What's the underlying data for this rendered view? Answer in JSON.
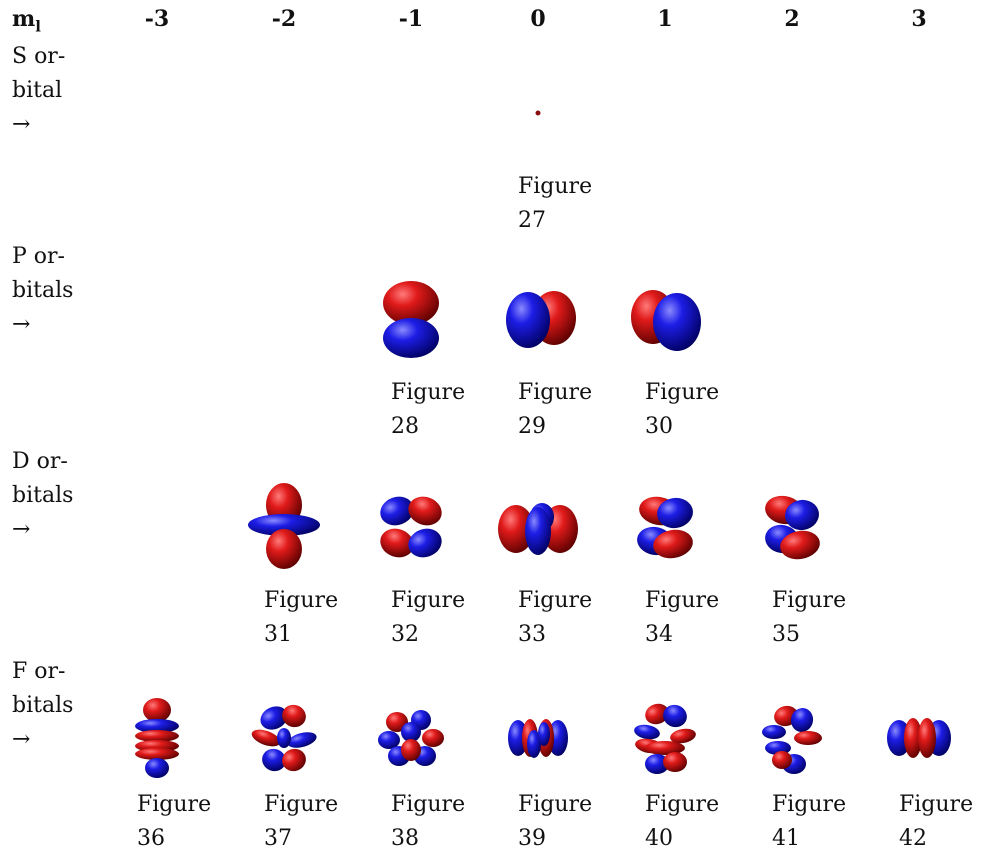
{
  "table": {
    "header": {
      "m_label": "m",
      "m_sub": "l",
      "columns": [
        "-3",
        "-2",
        "-1",
        "0",
        "1",
        "2",
        "3"
      ]
    },
    "rows": [
      {
        "label_lines": [
          "S or-",
          "bital",
          "→"
        ],
        "figures": [
          {
            "m": "0",
            "word": "Figure",
            "num": "27",
            "shape": "s-dot"
          }
        ]
      },
      {
        "label_lines": [
          "P or-",
          "bitals",
          "→"
        ],
        "figures": [
          {
            "m": "-1",
            "word": "Figure",
            "num": "28",
            "shape": "p-vertical"
          },
          {
            "m": "0",
            "word": "Figure",
            "num": "29",
            "shape": "p-blue-left"
          },
          {
            "m": "1",
            "word": "Figure",
            "num": "30",
            "shape": "p-red-left"
          }
        ]
      },
      {
        "label_lines": [
          "D or-",
          "bitals",
          "→"
        ],
        "figures": [
          {
            "m": "-2",
            "word": "Figure",
            "num": "31",
            "shape": "dz2"
          },
          {
            "m": "-1",
            "word": "Figure",
            "num": "32",
            "shape": "d-four-lobe-a"
          },
          {
            "m": "0",
            "word": "Figure",
            "num": "33",
            "shape": "d-four-lobe-flat"
          },
          {
            "m": "1",
            "word": "Figure",
            "num": "34",
            "shape": "d-four-lobe-b"
          },
          {
            "m": "2",
            "word": "Figure",
            "num": "35",
            "shape": "d-four-lobe-c"
          }
        ]
      },
      {
        "label_lines": [
          "F or-",
          "bitals",
          "→"
        ],
        "figures": [
          {
            "m": "-3",
            "word": "Figure",
            "num": "36",
            "shape": "fz3"
          },
          {
            "m": "-2",
            "word": "Figure",
            "num": "37",
            "shape": "f-six-lobe-a"
          },
          {
            "m": "-1",
            "word": "Figure",
            "num": "38",
            "shape": "f-eight-lobe"
          },
          {
            "m": "0",
            "word": "Figure",
            "num": "39",
            "shape": "f-flat-a"
          },
          {
            "m": "1",
            "word": "Figure",
            "num": "40",
            "shape": "f-six-lobe-b"
          },
          {
            "m": "2",
            "word": "Figure",
            "num": "41",
            "shape": "f-six-lobe-c"
          },
          {
            "m": "3",
            "word": "Figure",
            "num": "42",
            "shape": "f-flat-b"
          }
        ]
      }
    ]
  },
  "colors": {
    "positive": "#cc1111",
    "negative": "#1515d8",
    "dot": "#8a1010"
  }
}
